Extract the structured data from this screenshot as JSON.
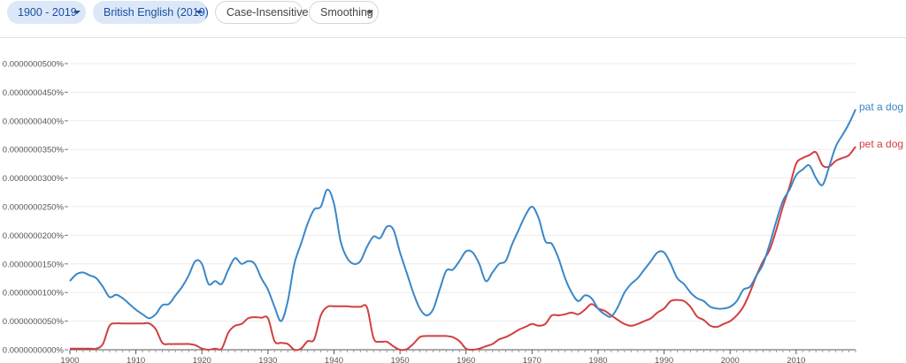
{
  "toolbar": {
    "range": {
      "label": "1900 - 2019",
      "icon": "chevron-down-icon"
    },
    "corpus": {
      "label": "British English (2019)",
      "icon": "chevron-down-icon"
    },
    "case": {
      "label": "Case-Insensitive"
    },
    "smoothing": {
      "label": "Smoothing",
      "icon": "chevron-down-icon"
    }
  },
  "colors": {
    "pat_a_dog": "#3a87c8",
    "pet_a_dog": "#d23f3f",
    "chip_active_bg": "#dce8f8",
    "chip_active_text": "#1a4fa0"
  },
  "chart_data": {
    "type": "line",
    "xlim": [
      1900,
      2019
    ],
    "ylim": [
      0,
      5e-09
    ],
    "grid": true,
    "legend": "inline at line ends (right)",
    "x_ticks": [
      "1900",
      "1910",
      "1920",
      "1930",
      "1940",
      "1950",
      "1960",
      "1970",
      "1980",
      "1990",
      "2000",
      "2010"
    ],
    "x_tick_values": [
      1900,
      1910,
      1920,
      1930,
      1940,
      1950,
      1960,
      1970,
      1980,
      1990,
      2000,
      2010
    ],
    "y_ticks": [
      "0.0000000000%",
      "0.0000000050%",
      "0.0000000100%",
      "0.0000000150%",
      "0.0000000200%",
      "0.0000000250%",
      "0.0000000300%",
      "0.0000000350%",
      "0.0000000400%",
      "0.0000000450%",
      "0.0000000500%"
    ],
    "y_tick_values": [
      0,
      5e-10,
      1e-09,
      1.5e-09,
      2e-09,
      2.5e-09,
      3e-09,
      3.5e-09,
      4e-09,
      4.5e-09,
      5e-09
    ],
    "series": [
      {
        "name": "pat a dog",
        "color": "#3a87c8",
        "points": [
          [
            1900,
            1.2e-09
          ],
          [
            1901,
            1.32e-09
          ],
          [
            1902,
            1.35e-09
          ],
          [
            1903,
            1.3e-09
          ],
          [
            1904,
            1.25e-09
          ],
          [
            1905,
            1.1e-09
          ],
          [
            1906,
            9.2e-10
          ],
          [
            1907,
            9.6e-10
          ],
          [
            1908,
            9e-10
          ],
          [
            1909,
            8e-10
          ],
          [
            1910,
            7e-10
          ],
          [
            1911,
            6.2e-10
          ],
          [
            1912,
            5.5e-10
          ],
          [
            1913,
            6.2e-10
          ],
          [
            1914,
            7.8e-10
          ],
          [
            1915,
            8e-10
          ],
          [
            1916,
            9.5e-10
          ],
          [
            1917,
            1.1e-09
          ],
          [
            1918,
            1.3e-09
          ],
          [
            1919,
            1.55e-09
          ],
          [
            1920,
            1.5e-09
          ],
          [
            1921,
            1.15e-09
          ],
          [
            1922,
            1.2e-09
          ],
          [
            1923,
            1.15e-09
          ],
          [
            1924,
            1.4e-09
          ],
          [
            1925,
            1.6e-09
          ],
          [
            1926,
            1.5e-09
          ],
          [
            1927,
            1.55e-09
          ],
          [
            1928,
            1.5e-09
          ],
          [
            1929,
            1.25e-09
          ],
          [
            1930,
            1.05e-09
          ],
          [
            1931,
            7.5e-10
          ],
          [
            1932,
            5e-10
          ],
          [
            1933,
            8.5e-10
          ],
          [
            1934,
            1.5e-09
          ],
          [
            1935,
            1.85e-09
          ],
          [
            1936,
            2.2e-09
          ],
          [
            1937,
            2.45e-09
          ],
          [
            1938,
            2.5e-09
          ],
          [
            1939,
            2.8e-09
          ],
          [
            1940,
            2.55e-09
          ],
          [
            1941,
            1.9e-09
          ],
          [
            1942,
            1.6e-09
          ],
          [
            1943,
            1.5e-09
          ],
          [
            1944,
            1.55e-09
          ],
          [
            1945,
            1.8e-09
          ],
          [
            1946,
            1.98e-09
          ],
          [
            1947,
            1.95e-09
          ],
          [
            1948,
            2.15e-09
          ],
          [
            1949,
            2.1e-09
          ],
          [
            1950,
            1.7e-09
          ],
          [
            1951,
            1.35e-09
          ],
          [
            1952,
            1e-09
          ],
          [
            1953,
            7.2e-10
          ],
          [
            1954,
            6e-10
          ],
          [
            1955,
            7e-10
          ],
          [
            1956,
            1.05e-09
          ],
          [
            1957,
            1.38e-09
          ],
          [
            1958,
            1.4e-09
          ],
          [
            1959,
            1.55e-09
          ],
          [
            1960,
            1.72e-09
          ],
          [
            1961,
            1.7e-09
          ],
          [
            1962,
            1.5e-09
          ],
          [
            1963,
            1.2e-09
          ],
          [
            1964,
            1.35e-09
          ],
          [
            1965,
            1.5e-09
          ],
          [
            1966,
            1.55e-09
          ],
          [
            1967,
            1.85e-09
          ],
          [
            1968,
            2.1e-09
          ],
          [
            1969,
            2.35e-09
          ],
          [
            1970,
            2.5e-09
          ],
          [
            1971,
            2.3e-09
          ],
          [
            1972,
            1.9e-09
          ],
          [
            1973,
            1.85e-09
          ],
          [
            1974,
            1.6e-09
          ],
          [
            1975,
            1.25e-09
          ],
          [
            1976,
            1e-09
          ],
          [
            1977,
            8.5e-10
          ],
          [
            1978,
            9.5e-10
          ],
          [
            1979,
            9e-10
          ],
          [
            1980,
            7.2e-10
          ],
          [
            1981,
            6.2e-10
          ],
          [
            1982,
            5.8e-10
          ],
          [
            1983,
            7.5e-10
          ],
          [
            1984,
            1e-09
          ],
          [
            1985,
            1.15e-09
          ],
          [
            1986,
            1.25e-09
          ],
          [
            1987,
            1.4e-09
          ],
          [
            1988,
            1.55e-09
          ],
          [
            1989,
            1.7e-09
          ],
          [
            1990,
            1.7e-09
          ],
          [
            1991,
            1.5e-09
          ],
          [
            1992,
            1.25e-09
          ],
          [
            1993,
            1.15e-09
          ],
          [
            1994,
            1e-09
          ],
          [
            1995,
            9e-10
          ],
          [
            1996,
            8.5e-10
          ],
          [
            1997,
            7.5e-10
          ],
          [
            1998,
            7.2e-10
          ],
          [
            1999,
            7.2e-10
          ],
          [
            2000,
            7.5e-10
          ],
          [
            2001,
            8.5e-10
          ],
          [
            2002,
            1.05e-09
          ],
          [
            2003,
            1.1e-09
          ],
          [
            2004,
            1.3e-09
          ],
          [
            2005,
            1.5e-09
          ],
          [
            2006,
            1.85e-09
          ],
          [
            2007,
            2.25e-09
          ],
          [
            2008,
            2.6e-09
          ],
          [
            2009,
            2.8e-09
          ],
          [
            2010,
            3.05e-09
          ],
          [
            2011,
            3.15e-09
          ],
          [
            2012,
            3.22e-09
          ],
          [
            2013,
            3e-09
          ],
          [
            2014,
            2.88e-09
          ],
          [
            2015,
            3.2e-09
          ],
          [
            2016,
            3.55e-09
          ],
          [
            2017,
            3.75e-09
          ],
          [
            2018,
            3.95e-09
          ],
          [
            2019,
            4.2e-09
          ]
        ]
      },
      {
        "name": "pet a dog",
        "color": "#d23f3f",
        "points": [
          [
            1900,
            2e-11
          ],
          [
            1901,
            2e-11
          ],
          [
            1902,
            2e-11
          ],
          [
            1903,
            2e-11
          ],
          [
            1904,
            2e-11
          ],
          [
            1905,
            1e-10
          ],
          [
            1906,
            4.2e-10
          ],
          [
            1907,
            4.6e-10
          ],
          [
            1908,
            4.6e-10
          ],
          [
            1909,
            4.6e-10
          ],
          [
            1910,
            4.6e-10
          ],
          [
            1911,
            4.6e-10
          ],
          [
            1912,
            4.6e-10
          ],
          [
            1913,
            3.6e-10
          ],
          [
            1914,
            1.2e-10
          ],
          [
            1915,
            1e-10
          ],
          [
            1916,
            1e-10
          ],
          [
            1917,
            1e-10
          ],
          [
            1918,
            1e-10
          ],
          [
            1919,
            8e-11
          ],
          [
            1920,
            2e-11
          ],
          [
            1921,
            0.0
          ],
          [
            1922,
            2e-11
          ],
          [
            1923,
            2e-11
          ],
          [
            1924,
            3e-10
          ],
          [
            1925,
            4.2e-10
          ],
          [
            1926,
            4.5e-10
          ],
          [
            1927,
            5.5e-10
          ],
          [
            1928,
            5.7e-10
          ],
          [
            1929,
            5.6e-10
          ],
          [
            1930,
            5.5e-10
          ],
          [
            1931,
            1.5e-10
          ],
          [
            1932,
            1.2e-10
          ],
          [
            1933,
            1e-10
          ],
          [
            1934,
            0.0
          ],
          [
            1935,
            2e-11
          ],
          [
            1936,
            1.5e-10
          ],
          [
            1937,
            1.8e-10
          ],
          [
            1938,
            6e-10
          ],
          [
            1939,
            7.5e-10
          ],
          [
            1940,
            7.6e-10
          ],
          [
            1941,
            7.6e-10
          ],
          [
            1942,
            7.6e-10
          ],
          [
            1943,
            7.5e-10
          ],
          [
            1944,
            7.5e-10
          ],
          [
            1945,
            7.4e-10
          ],
          [
            1946,
            2e-10
          ],
          [
            1947,
            1.4e-10
          ],
          [
            1948,
            1.4e-10
          ],
          [
            1949,
            6e-11
          ],
          [
            1950,
            0.0
          ],
          [
            1951,
            1e-11
          ],
          [
            1952,
            1e-10
          ],
          [
            1953,
            2.2e-10
          ],
          [
            1954,
            2.4e-10
          ],
          [
            1955,
            2.4e-10
          ],
          [
            1956,
            2.4e-10
          ],
          [
            1957,
            2.4e-10
          ],
          [
            1958,
            2.2e-10
          ],
          [
            1959,
            1.5e-10
          ],
          [
            1960,
            2e-11
          ],
          [
            1961,
            0.0
          ],
          [
            1962,
            2e-11
          ],
          [
            1963,
            6e-11
          ],
          [
            1964,
            1e-10
          ],
          [
            1965,
            1.8e-10
          ],
          [
            1966,
            2.2e-10
          ],
          [
            1967,
            2.8e-10
          ],
          [
            1968,
            3.5e-10
          ],
          [
            1969,
            4e-10
          ],
          [
            1970,
            4.5e-10
          ],
          [
            1971,
            4.2e-10
          ],
          [
            1972,
            4.5e-10
          ],
          [
            1973,
            6e-10
          ],
          [
            1974,
            6e-10
          ],
          [
            1975,
            6.2e-10
          ],
          [
            1976,
            6.5e-10
          ],
          [
            1977,
            6.2e-10
          ],
          [
            1978,
            7e-10
          ],
          [
            1979,
            8e-10
          ],
          [
            1980,
            7.2e-10
          ],
          [
            1981,
            6.8e-10
          ],
          [
            1982,
            6e-10
          ],
          [
            1983,
            5.2e-10
          ],
          [
            1984,
            4.5e-10
          ],
          [
            1985,
            4.2e-10
          ],
          [
            1986,
            4.5e-10
          ],
          [
            1987,
            5e-10
          ],
          [
            1988,
            5.5e-10
          ],
          [
            1989,
            6.5e-10
          ],
          [
            1990,
            7.2e-10
          ],
          [
            1991,
            8.5e-10
          ],
          [
            1992,
            8.7e-10
          ],
          [
            1993,
            8.5e-10
          ],
          [
            1994,
            7.5e-10
          ],
          [
            1995,
            5.8e-10
          ],
          [
            1996,
            5.2e-10
          ],
          [
            1997,
            4.2e-10
          ],
          [
            1998,
            4e-10
          ],
          [
            1999,
            4.5e-10
          ],
          [
            2000,
            5e-10
          ],
          [
            2001,
            6e-10
          ],
          [
            2002,
            7.5e-10
          ],
          [
            2003,
            1e-09
          ],
          [
            2004,
            1.3e-09
          ],
          [
            2005,
            1.55e-09
          ],
          [
            2006,
            1.75e-09
          ],
          [
            2007,
            2.1e-09
          ],
          [
            2008,
            2.5e-09
          ],
          [
            2009,
            2.85e-09
          ],
          [
            2010,
            3.25e-09
          ],
          [
            2011,
            3.35e-09
          ],
          [
            2012,
            3.4e-09
          ],
          [
            2013,
            3.45e-09
          ],
          [
            2014,
            3.22e-09
          ],
          [
            2015,
            3.2e-09
          ],
          [
            2016,
            3.3e-09
          ],
          [
            2017,
            3.35e-09
          ],
          [
            2018,
            3.4e-09
          ],
          [
            2019,
            3.55e-09
          ]
        ]
      }
    ]
  }
}
